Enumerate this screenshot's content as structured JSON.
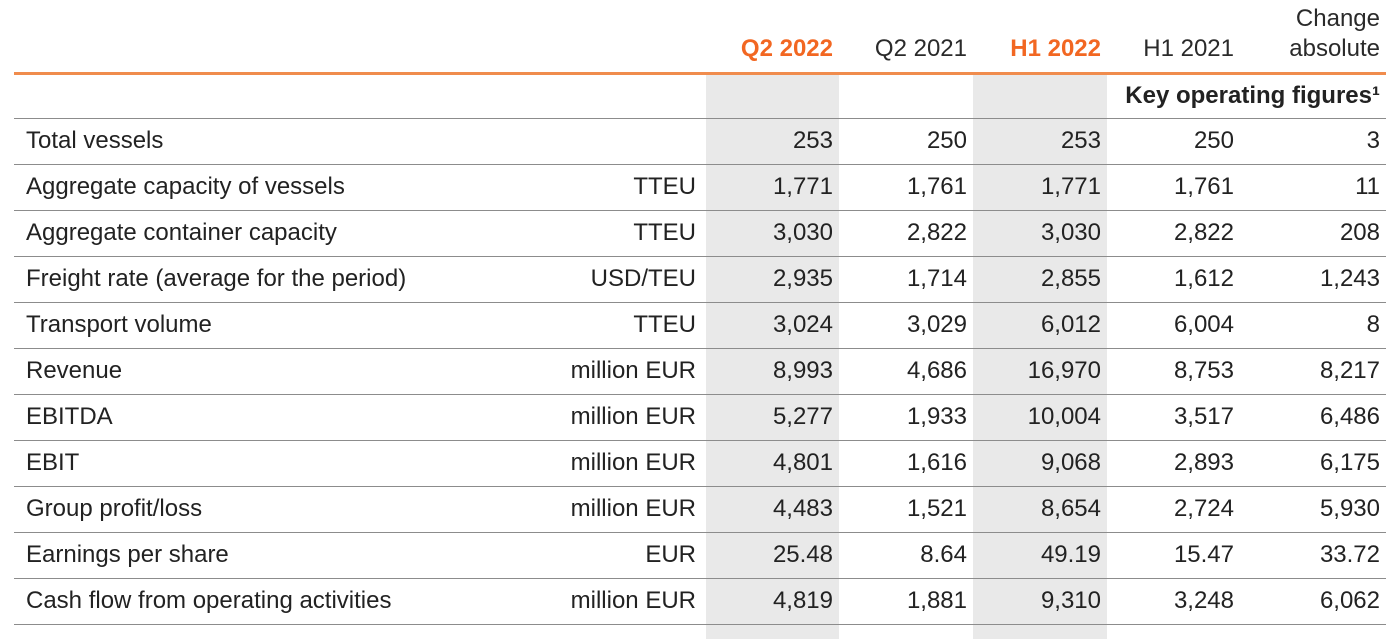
{
  "table": {
    "headers": {
      "q2_2022": "Q2 2022",
      "q2_2021": "Q2 2021",
      "h1_2022": "H1 2022",
      "h1_2021": "H1 2021",
      "change_line1": "Change",
      "change_line2": "absolute"
    },
    "section_title": "Key operating figures¹",
    "accent_color": "#f26722",
    "shade_color": "#e9e9e9",
    "rows": [
      {
        "label": "Total vessels",
        "unit": "",
        "q2_2022": "253",
        "q2_2021": "250",
        "h1_2022": "253",
        "h1_2021": "250",
        "change": "3"
      },
      {
        "label": "Aggregate capacity of vessels",
        "unit": "TTEU",
        "q2_2022": "1,771",
        "q2_2021": "1,761",
        "h1_2022": "1,771",
        "h1_2021": "1,761",
        "change": "11"
      },
      {
        "label": "Aggregate container capacity",
        "unit": "TTEU",
        "q2_2022": "3,030",
        "q2_2021": "2,822",
        "h1_2022": "3,030",
        "h1_2021": "2,822",
        "change": "208"
      },
      {
        "label": "Freight rate (average for the period)",
        "unit": "USD/TEU",
        "q2_2022": "2,935",
        "q2_2021": "1,714",
        "h1_2022": "2,855",
        "h1_2021": "1,612",
        "change": "1,243"
      },
      {
        "label": "Transport volume",
        "unit": "TTEU",
        "q2_2022": "3,024",
        "q2_2021": "3,029",
        "h1_2022": "6,012",
        "h1_2021": "6,004",
        "change": "8"
      },
      {
        "label": "Revenue",
        "unit": "million EUR",
        "q2_2022": "8,993",
        "q2_2021": "4,686",
        "h1_2022": "16,970",
        "h1_2021": "8,753",
        "change": "8,217"
      },
      {
        "label": "EBITDA",
        "unit": "million EUR",
        "q2_2022": "5,277",
        "q2_2021": "1,933",
        "h1_2022": "10,004",
        "h1_2021": "3,517",
        "change": "6,486"
      },
      {
        "label": "EBIT",
        "unit": "million EUR",
        "q2_2022": "4,801",
        "q2_2021": "1,616",
        "h1_2022": "9,068",
        "h1_2021": "2,893",
        "change": "6,175"
      },
      {
        "label": "Group profit/loss",
        "unit": "million EUR",
        "q2_2022": "4,483",
        "q2_2021": "1,521",
        "h1_2022": "8,654",
        "h1_2021": "2,724",
        "change": "5,930"
      },
      {
        "label": "Earnings per share",
        "unit": "EUR",
        "q2_2022": "25.48",
        "q2_2021": "8.64",
        "h1_2022": "49.19",
        "h1_2021": "15.47",
        "change": "33.72"
      },
      {
        "label": "Cash flow from operating activities",
        "unit": "million EUR",
        "q2_2022": "4,819",
        "q2_2021": "1,881",
        "h1_2022": "9,310",
        "h1_2021": "3,248",
        "change": "6,062"
      }
    ]
  }
}
